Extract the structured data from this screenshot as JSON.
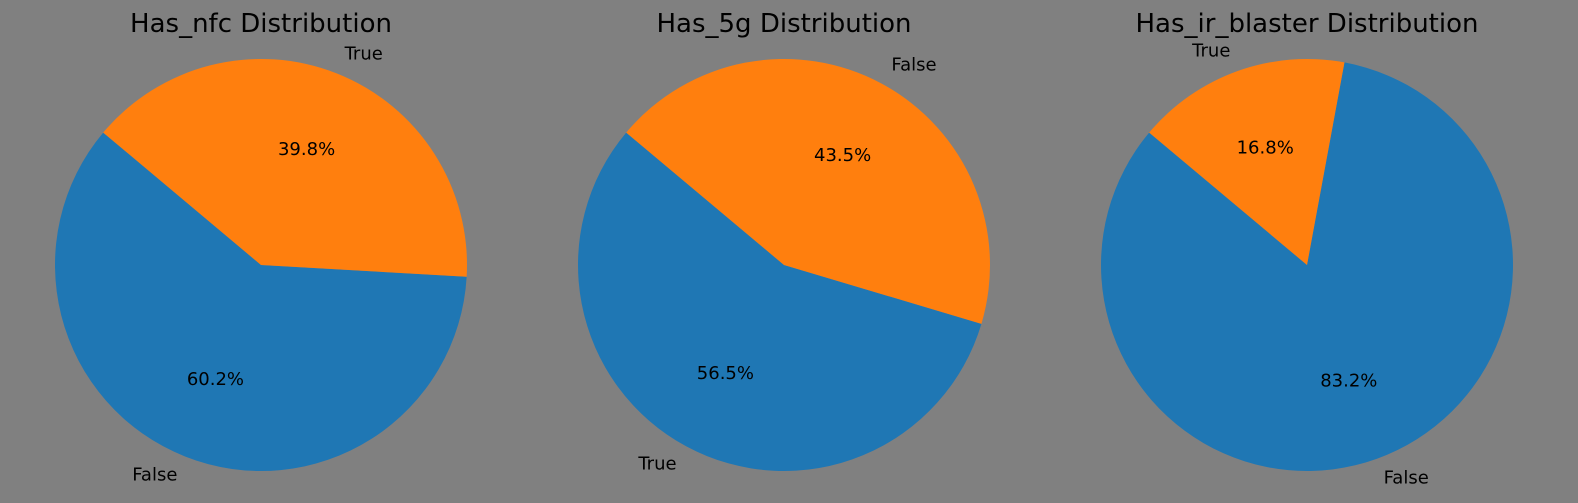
{
  "figure": {
    "background": "#808080"
  },
  "chart_data": [
    {
      "type": "pie",
      "title": "Has_nfc Distribution",
      "labels": [
        "False",
        "True"
      ],
      "values": [
        60.2,
        39.8
      ],
      "percent_labels": [
        "60.2%",
        "39.8%"
      ],
      "colors": [
        "#1f77b4",
        "#ff7f0e"
      ],
      "start_angle_deg": 140,
      "counterclockwise": true
    },
    {
      "type": "pie",
      "title": "Has_5g Distribution",
      "labels": [
        "True",
        "False"
      ],
      "values": [
        56.5,
        43.5
      ],
      "percent_labels": [
        "56.5%",
        "43.5%"
      ],
      "colors": [
        "#1f77b4",
        "#ff7f0e"
      ],
      "start_angle_deg": 140,
      "counterclockwise": true
    },
    {
      "type": "pie",
      "title": "Has_ir_blaster Distribution",
      "labels": [
        "False",
        "True"
      ],
      "values": [
        83.2,
        16.8
      ],
      "percent_labels": [
        "83.2%",
        "16.8%"
      ],
      "colors": [
        "#1f77b4",
        "#ff7f0e"
      ],
      "start_angle_deg": 140,
      "counterclockwise": true
    }
  ]
}
